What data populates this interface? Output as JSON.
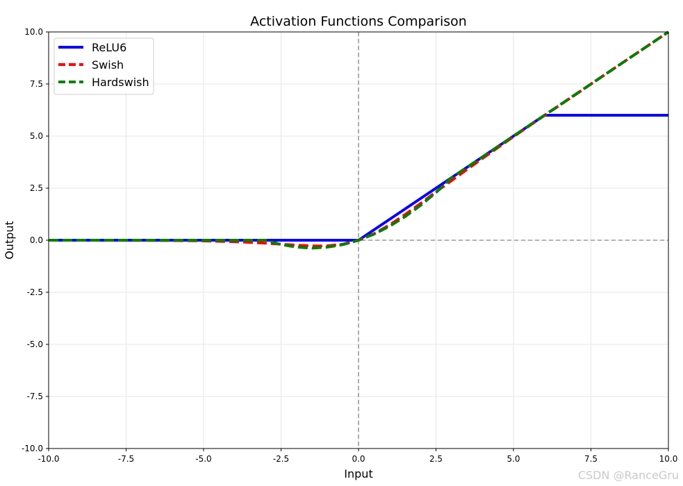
{
  "chart_data": {
    "type": "line",
    "title": "Activation Functions Comparison",
    "xlabel": "Input",
    "ylabel": "Output",
    "xlim": [
      -10,
      10
    ],
    "ylim": [
      -10,
      10
    ],
    "xticks": [
      -10,
      -7.5,
      -5,
      -2.5,
      0,
      2.5,
      5,
      7.5,
      10
    ],
    "yticks": [
      -10,
      -7.5,
      -5,
      -2.5,
      0,
      2.5,
      5,
      7.5,
      10
    ],
    "tick_labels_x": [
      "-10.0",
      "-7.5",
      "-5.0",
      "-2.5",
      "0.0",
      "2.5",
      "5.0",
      "7.5",
      "10.0"
    ],
    "tick_labels_y": [
      "-10.0",
      "-7.5",
      "-5.0",
      "-2.5",
      "0.0",
      "2.5",
      "5.0",
      "7.5",
      "10.0"
    ],
    "grid": true,
    "legend_position": "top-left",
    "reference_lines": [
      {
        "axis": "x",
        "value": 0,
        "style": "dashed",
        "color": "#999999"
      },
      {
        "axis": "y",
        "value": 0,
        "style": "dashed",
        "color": "#999999"
      }
    ],
    "series": [
      {
        "name": "ReLU6",
        "color": "#0000ff",
        "style": "solid",
        "x": [
          -10,
          -5,
          0,
          2.5,
          5,
          6,
          7.5,
          10
        ],
        "y": [
          0,
          0,
          0,
          2.5,
          5,
          6,
          6,
          6
        ]
      },
      {
        "name": "Swish",
        "color": "#ff0000",
        "style": "dashed",
        "x": [
          -10,
          -8,
          -6,
          -5,
          -4,
          -3,
          -2.5,
          -2,
          -1.5,
          -1.28,
          -1,
          -0.5,
          0,
          0.5,
          1,
          1.5,
          2,
          2.5,
          3,
          4,
          5,
          6,
          7,
          8,
          9,
          10
        ],
        "y": [
          0,
          -0.003,
          -0.015,
          -0.03,
          -0.07,
          -0.14,
          -0.19,
          -0.24,
          -0.27,
          -0.28,
          -0.27,
          -0.19,
          0,
          0.31,
          0.73,
          1.23,
          1.76,
          2.32,
          2.86,
          3.93,
          4.97,
          5.99,
          6.99,
          8.0,
          9.0,
          10
        ]
      },
      {
        "name": "Hardswish",
        "color": "#008000",
        "style": "dashed",
        "x": [
          -10,
          -5,
          -3,
          -2.5,
          -2,
          -1.5,
          -1,
          -0.5,
          0,
          0.5,
          1,
          1.5,
          2,
          2.5,
          3,
          4,
          5,
          6,
          7.5,
          10
        ],
        "y": [
          0,
          0,
          0,
          -0.21,
          -0.33,
          -0.38,
          -0.33,
          -0.21,
          0,
          0.29,
          0.67,
          1.13,
          1.67,
          2.29,
          3,
          4,
          5,
          6,
          7.5,
          10
        ]
      }
    ]
  },
  "watermark": "CSDN @RanceGru"
}
